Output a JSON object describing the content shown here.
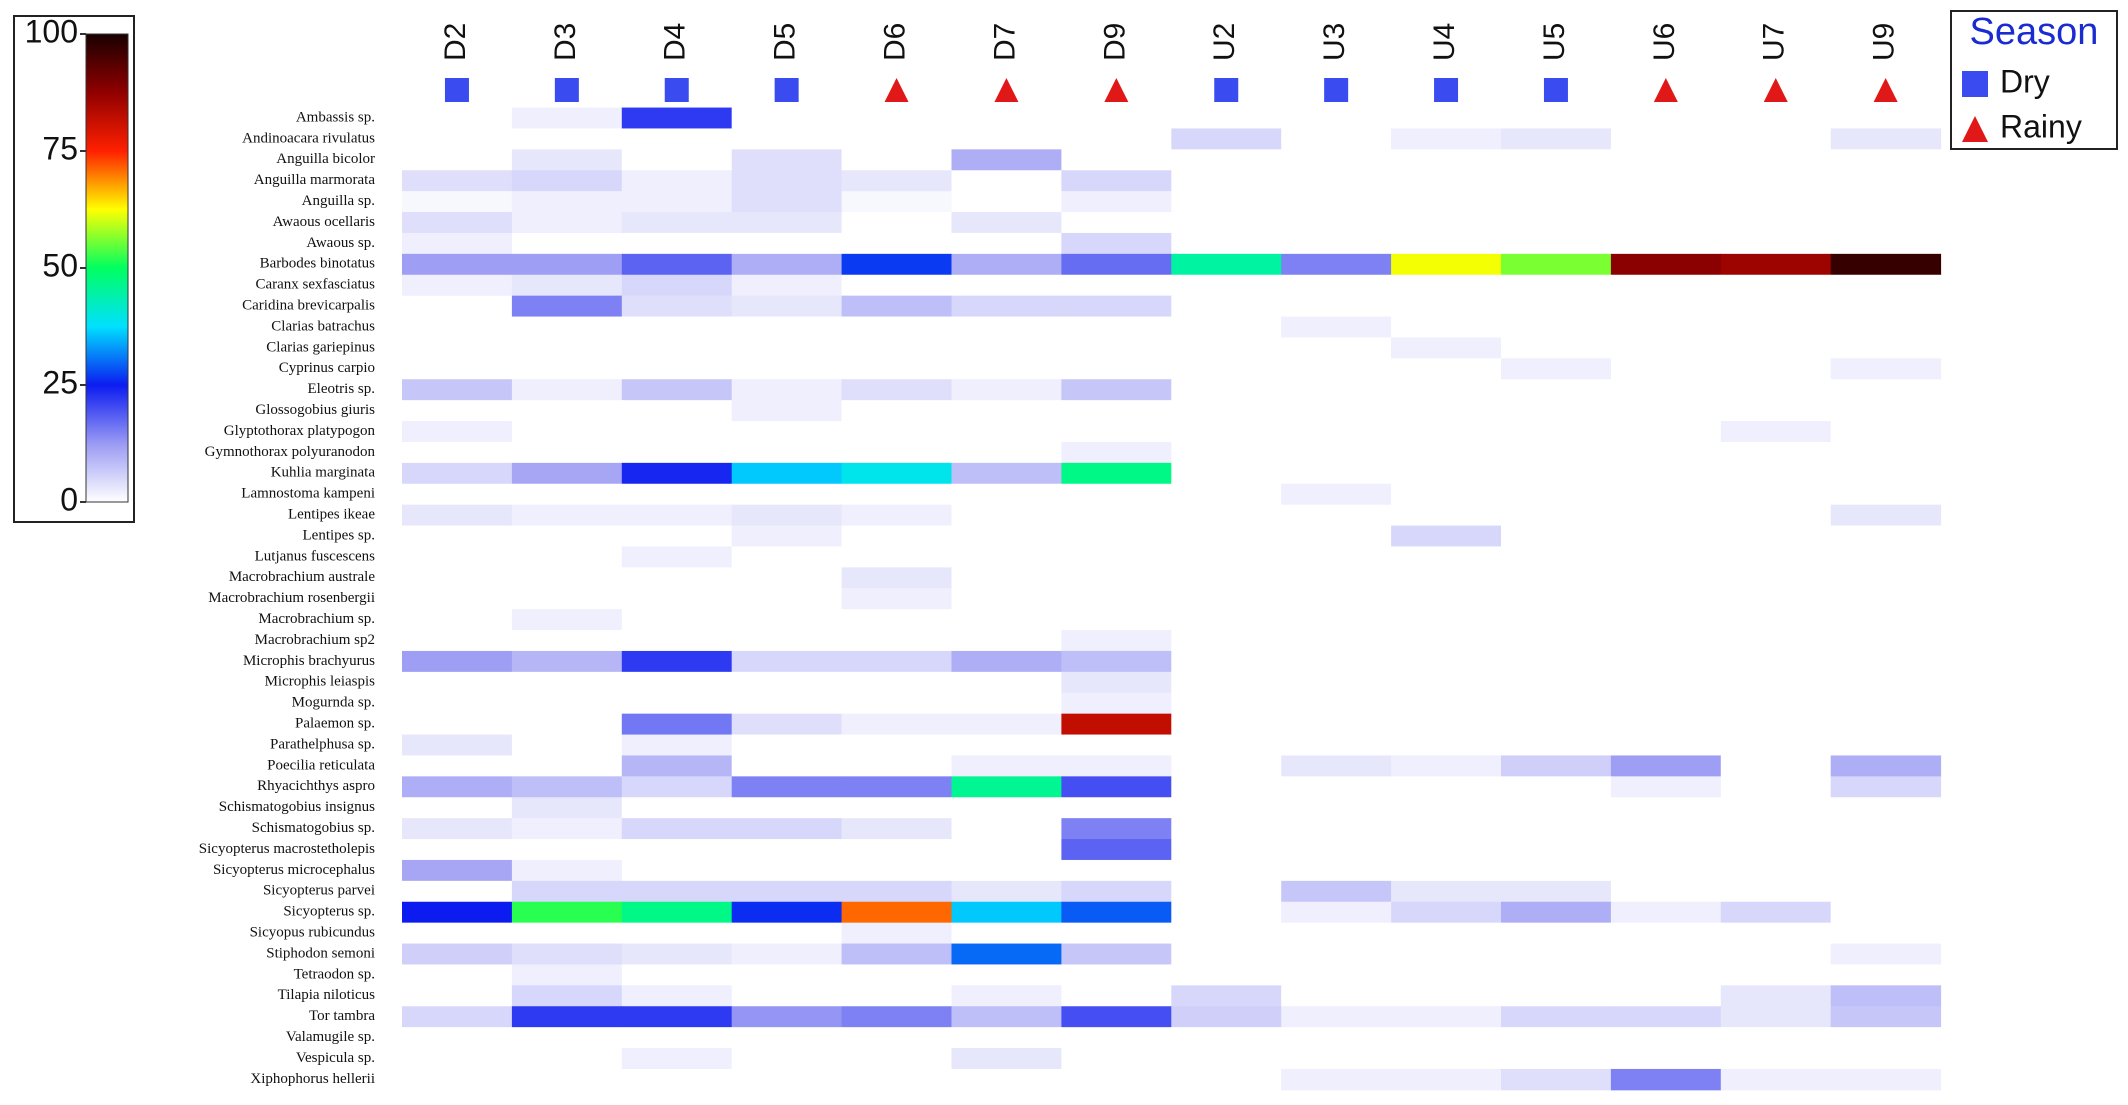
{
  "chart_data": {
    "type": "heatmap",
    "columns": [
      "D2",
      "D3",
      "D4",
      "D5",
      "D6",
      "D7",
      "D9",
      "U2",
      "U3",
      "U4",
      "U5",
      "U6",
      "U7",
      "U9"
    ],
    "column_season": [
      "Dry",
      "Dry",
      "Dry",
      "Dry",
      "Rainy",
      "Rainy",
      "Rainy",
      "Dry",
      "Dry",
      "Dry",
      "Dry",
      "Rainy",
      "Rainy",
      "Rainy"
    ],
    "legend": {
      "title": "Season",
      "entries": [
        {
          "name": "Dry",
          "color": "#3a4cf0",
          "marker": "square"
        },
        {
          "name": "Rainy",
          "color": "#e01818",
          "marker": "triangle"
        }
      ]
    },
    "rows": [
      "Ambassis sp.",
      "Andinoacara rivulatus",
      "Anguilla bicolor",
      "Anguilla marmorata",
      "Anguilla sp.",
      "Awaous ocellaris",
      "Awaous sp.",
      "Barbodes  binotatus",
      "Caranx  sexfasciatus",
      "Caridina  brevicarpalis",
      "Clarias  batrachus",
      "Clarias  gariepinus",
      "Cyprinus carpio",
      "Eleotris sp.",
      "Glossogobius  giuris",
      "Glyptothorax platypogon",
      "Gymnothorax  polyuranodon",
      "Kuhlia marginata",
      "Lamnostoma  kampeni",
      "Lentipes ikeae",
      "Lentipes sp.",
      "Lutjanus fuscescens",
      "Macrobrachium  australe",
      "Macrobrachium  rosenbergii",
      "Macrobrachium  sp.",
      "Macrobrachium  sp2",
      "Microphis brachyurus",
      "Microphis leiaspis",
      "Mogurnda sp.",
      "Palaemon sp.",
      "Parathelphusa sp.",
      "Poecilia reticulata",
      "Rhyacichthys aspro",
      "Schismatogobius insignus",
      "Schismatogobius sp.",
      "Sicyopterus macrostetholepis",
      "Sicyopterus microcephalus",
      "Sicyopterus parvei",
      "Sicyopterus sp.",
      "Sicyopus rubicundus",
      "Stiphodon semoni",
      "Tetraodon sp.",
      "Tilapia niloticus",
      "Tor tambra",
      "Valamugile sp.",
      "Vespicula sp.",
      "Xiphophorus  hellerii"
    ],
    "values": [
      [
        0,
        2,
        22,
        0,
        0,
        0,
        0,
        0,
        0,
        0,
        0,
        0,
        0,
        0
      ],
      [
        0,
        0,
        0,
        0,
        0,
        0,
        0,
        5,
        0,
        2,
        3,
        0,
        0,
        3
      ],
      [
        0,
        3,
        0,
        4,
        0,
        10,
        0,
        0,
        0,
        0,
        0,
        0,
        0,
        0
      ],
      [
        4,
        5,
        2,
        4,
        3,
        0,
        5,
        0,
        0,
        0,
        0,
        0,
        0,
        0
      ],
      [
        1,
        2,
        2,
        4,
        1,
        0,
        2,
        0,
        0,
        0,
        0,
        0,
        0,
        0
      ],
      [
        4,
        2,
        3,
        3,
        0,
        3,
        0,
        0,
        0,
        0,
        0,
        0,
        0,
        0
      ],
      [
        2,
        0,
        0,
        0,
        0,
        0,
        5,
        0,
        0,
        0,
        0,
        0,
        0,
        0
      ],
      [
        12,
        12,
        18,
        10,
        27,
        10,
        17,
        45,
        15,
        62,
        56,
        88,
        86,
        97
      ],
      [
        2,
        3,
        5,
        2,
        0,
        0,
        0,
        0,
        0,
        0,
        0,
        0,
        0,
        0
      ],
      [
        0,
        15,
        4,
        3,
        8,
        5,
        5,
        0,
        0,
        0,
        0,
        0,
        0,
        0
      ],
      [
        0,
        0,
        0,
        0,
        0,
        0,
        0,
        0,
        2,
        0,
        0,
        0,
        0,
        0
      ],
      [
        0,
        0,
        0,
        0,
        0,
        0,
        0,
        0,
        0,
        2,
        0,
        0,
        0,
        0
      ],
      [
        0,
        0,
        0,
        0,
        0,
        0,
        0,
        0,
        0,
        0,
        2,
        0,
        0,
        2
      ],
      [
        7,
        2,
        7,
        2,
        4,
        2,
        7,
        0,
        0,
        0,
        0,
        0,
        0,
        0
      ],
      [
        0,
        0,
        0,
        2,
        0,
        0,
        0,
        0,
        0,
        0,
        0,
        0,
        0,
        0
      ],
      [
        2,
        0,
        0,
        0,
        0,
        0,
        0,
        0,
        0,
        0,
        0,
        0,
        2,
        0
      ],
      [
        0,
        0,
        0,
        0,
        0,
        0,
        2,
        0,
        0,
        0,
        0,
        0,
        0,
        0
      ],
      [
        5,
        11,
        24,
        36,
        39,
        8,
        47,
        0,
        0,
        0,
        0,
        0,
        0,
        0
      ],
      [
        0,
        0,
        0,
        0,
        0,
        0,
        0,
        0,
        2,
        0,
        0,
        0,
        0,
        0
      ],
      [
        3,
        2,
        2,
        3,
        2,
        0,
        0,
        0,
        0,
        0,
        0,
        0,
        0,
        3
      ],
      [
        0,
        0,
        0,
        2,
        0,
        0,
        0,
        0,
        0,
        5,
        0,
        0,
        0,
        0
      ],
      [
        0,
        0,
        2,
        0,
        0,
        0,
        0,
        0,
        0,
        0,
        0,
        0,
        0,
        0
      ],
      [
        0,
        0,
        0,
        0,
        3,
        0,
        0,
        0,
        0,
        0,
        0,
        0,
        0,
        0
      ],
      [
        0,
        0,
        0,
        0,
        2,
        0,
        0,
        0,
        0,
        0,
        0,
        0,
        0,
        0
      ],
      [
        0,
        2,
        0,
        0,
        0,
        0,
        0,
        0,
        0,
        0,
        0,
        0,
        0,
        0
      ],
      [
        0,
        0,
        0,
        0,
        0,
        0,
        2,
        0,
        0,
        0,
        0,
        0,
        0,
        0
      ],
      [
        12,
        9,
        22,
        5,
        5,
        10,
        8,
        0,
        0,
        0,
        0,
        0,
        0,
        0
      ],
      [
        0,
        0,
        0,
        0,
        0,
        0,
        3,
        0,
        0,
        0,
        0,
        0,
        0,
        0
      ],
      [
        0,
        0,
        0,
        0,
        0,
        0,
        2,
        0,
        0,
        0,
        0,
        0,
        0,
        0
      ],
      [
        0,
        0,
        16,
        4,
        2,
        2,
        82,
        0,
        0,
        0,
        0,
        0,
        0,
        0
      ],
      [
        3,
        0,
        2,
        0,
        0,
        0,
        0,
        0,
        0,
        0,
        0,
        0,
        0,
        0
      ],
      [
        0,
        0,
        9,
        0,
        0,
        2,
        2,
        0,
        3,
        2,
        6,
        12,
        0,
        10
      ],
      [
        10,
        8,
        5,
        15,
        15,
        46,
        20,
        0,
        0,
        0,
        0,
        2,
        0,
        5
      ],
      [
        0,
        3,
        0,
        0,
        0,
        0,
        0,
        0,
        0,
        0,
        0,
        0,
        0,
        0
      ],
      [
        3,
        2,
        5,
        5,
        3,
        0,
        15,
        0,
        0,
        0,
        0,
        0,
        0,
        0
      ],
      [
        0,
        0,
        0,
        0,
        0,
        0,
        18,
        0,
        0,
        0,
        0,
        0,
        0,
        0
      ],
      [
        11,
        2,
        0,
        0,
        0,
        0,
        0,
        0,
        0,
        0,
        0,
        0,
        0,
        0
      ],
      [
        0,
        5,
        5,
        5,
        5,
        3,
        5,
        0,
        7,
        3,
        3,
        0,
        0,
        0
      ],
      [
        25,
        52,
        47,
        26,
        71,
        36,
        29,
        0,
        2,
        5,
        10,
        2,
        5,
        0
      ],
      [
        0,
        0,
        0,
        0,
        2,
        0,
        0,
        0,
        0,
        0,
        0,
        0,
        0,
        0
      ],
      [
        6,
        4,
        3,
        2,
        8,
        30,
        7,
        0,
        0,
        0,
        0,
        0,
        0,
        2
      ],
      [
        0,
        2,
        0,
        0,
        0,
        0,
        0,
        0,
        0,
        0,
        0,
        0,
        0,
        0
      ],
      [
        0,
        5,
        2,
        0,
        0,
        2,
        0,
        5,
        0,
        0,
        0,
        0,
        3,
        8
      ],
      [
        5,
        22,
        22,
        13,
        15,
        8,
        20,
        6,
        2,
        2,
        5,
        5,
        3,
        7
      ],
      [
        0,
        0,
        0,
        0,
        0,
        0,
        0,
        0,
        0,
        0,
        0,
        0,
        0,
        0
      ],
      [
        0,
        0,
        2,
        0,
        0,
        3,
        0,
        0,
        0,
        0,
        0,
        0,
        0,
        0
      ],
      [
        0,
        0,
        0,
        0,
        0,
        0,
        0,
        0,
        2,
        2,
        4,
        15,
        2,
        2
      ]
    ],
    "zlim": [
      0,
      100
    ],
    "zticks": [
      0,
      25,
      50,
      75,
      100
    ],
    "colorscale": [
      "#ffffff",
      "#9a9af4",
      "#0c1cf0",
      "#00e0ff",
      "#00ff60",
      "#ffff00",
      "#ff2000",
      "#900000",
      "#1a0000"
    ]
  }
}
